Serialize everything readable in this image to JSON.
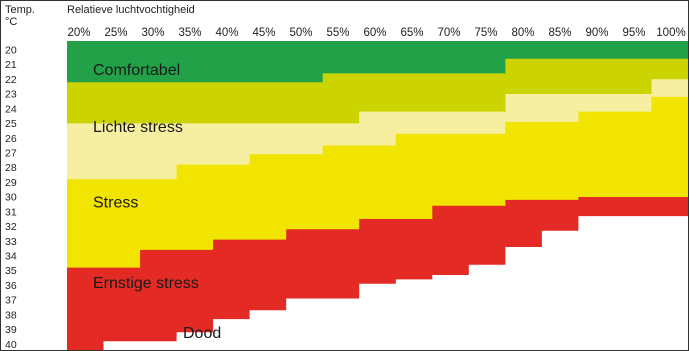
{
  "chart_data": {
    "type": "heatmap",
    "y_header": [
      "Temp.",
      "°C"
    ],
    "xlabel": "Relatieve luchtvochtigheid",
    "x_ticks": [
      "20%",
      "25%",
      "30%",
      "35%",
      "40%",
      "45%",
      "50%",
      "55%",
      "60%",
      "65%",
      "70%",
      "75%",
      "80%",
      "85%",
      "90%",
      "95%",
      "100%"
    ],
    "y_ticks": [
      "20",
      "21",
      "22",
      "23",
      "24",
      "25",
      "26",
      "27",
      "28",
      "29",
      "30",
      "31",
      "32",
      "33",
      "34",
      "35",
      "36",
      "37",
      "38",
      "39",
      "40"
    ],
    "humidity_percent": [
      20,
      25,
      30,
      35,
      40,
      45,
      50,
      55,
      60,
      65,
      70,
      75,
      80,
      85,
      90,
      95,
      100
    ],
    "temperature_c_range": [
      20,
      40
    ],
    "categories": [
      {
        "name": "Comfortabel",
        "color": "#22a148"
      },
      {
        "name": "Lichte stress",
        "color": "#cbd400"
      },
      {
        "name": "Stress",
        "color": "#f6eea0"
      },
      {
        "name": "Ernstige stress",
        "color": "#f0e400"
      },
      {
        "name": "Dood",
        "color": "#e32a24"
      }
    ],
    "boundaries_temperature_c": {
      "comfort_upper": [
        22.8,
        22.8,
        22.8,
        22.8,
        22.8,
        22.8,
        22.8,
        22.2,
        22.2,
        22.2,
        22.2,
        22.2,
        21.2,
        21.2,
        21.2,
        21.2,
        21.2
      ],
      "light_stress_upper": [
        25.6,
        25.6,
        25.6,
        25.6,
        25.6,
        25.6,
        25.6,
        25.6,
        24.8,
        24.8,
        24.8,
        24.8,
        23.6,
        23.6,
        23.6,
        23.6,
        22.6
      ],
      "stress_upper": [
        29.4,
        29.4,
        29.4,
        28.4,
        28.4,
        27.7,
        27.7,
        27.1,
        27.1,
        26.3,
        26.3,
        26.3,
        25.5,
        25.5,
        24.8,
        24.8,
        23.8
      ],
      "heavy_stress_upper": [
        35.4,
        35.4,
        34.2,
        34.2,
        33.5,
        33.5,
        32.8,
        32.8,
        32.1,
        32.1,
        31.2,
        31.2,
        30.8,
        30.8,
        30.6,
        30.6,
        30.6
      ],
      "death_upper": [
        41.0,
        40.4,
        40.4,
        39.8,
        38.9,
        38.3,
        37.5,
        37.5,
        36.5,
        36.2,
        35.9,
        35.2,
        34.0,
        32.9,
        31.9,
        31.9,
        31.9
      ]
    }
  }
}
